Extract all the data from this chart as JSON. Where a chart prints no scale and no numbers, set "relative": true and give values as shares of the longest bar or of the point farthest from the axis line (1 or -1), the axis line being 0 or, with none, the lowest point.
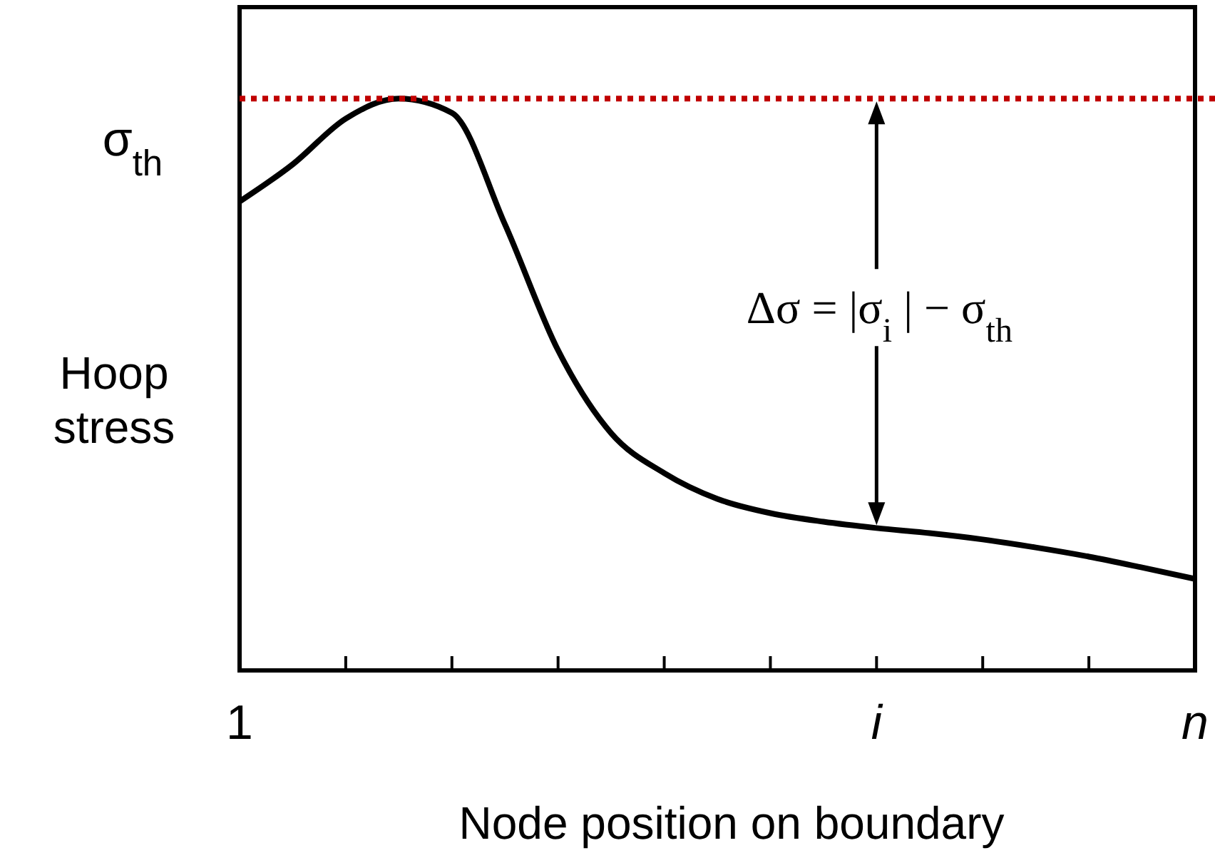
{
  "chart_data": {
    "type": "line",
    "relative": true,
    "xlabel": "Node position on boundary",
    "ylabel": "Hoop stress",
    "categories": [
      "1",
      null,
      null,
      null,
      null,
      null,
      null,
      null,
      null,
      null,
      null,
      null,
      "i",
      null,
      null,
      null,
      null,
      null,
      "n"
    ],
    "series": [
      {
        "color": "#000000",
        "values": [
          0.82,
          0.885,
          0.965,
          1,
          0.975,
          0.78,
          0.56,
          0.415,
          0.345,
          0.3,
          0.275,
          0.26,
          0.249,
          0.24,
          0.229,
          0.215,
          0.199,
          0.18,
          0.16
        ]
      }
    ],
    "ref_lines": [
      {
        "axis": "y",
        "value": 1,
        "label": "σ$_{th}$",
        "color": "#c00000",
        "line_style": "dotted"
      }
    ],
    "annotations": [
      "Δσ = |σ$_{i}$ | − σ$_{th}$"
    ]
  }
}
